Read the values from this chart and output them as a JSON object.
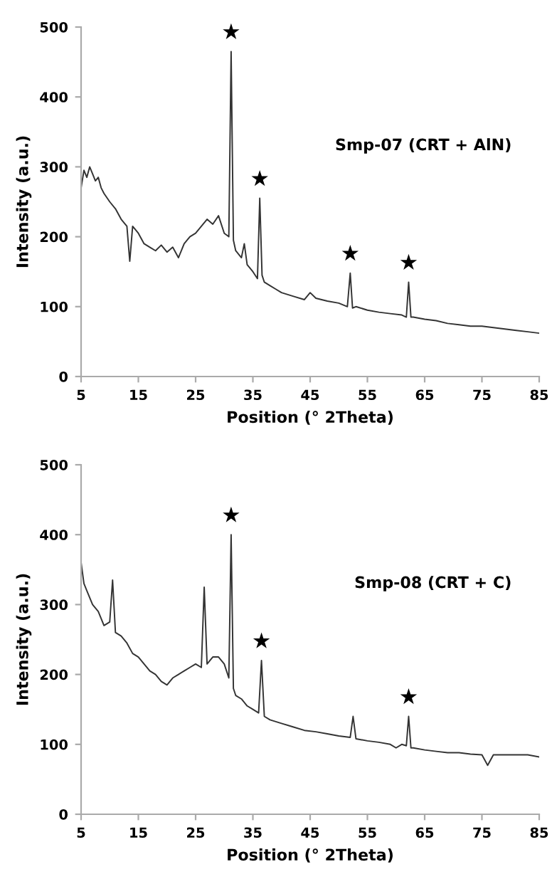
{
  "chart_data": [
    {
      "type": "line",
      "xlabel": "Position (° 2Theta)",
      "ylabel": "Intensity (a.u.)",
      "xlim": [
        5,
        85
      ],
      "ylim": [
        0,
        500
      ],
      "xticks": [
        5,
        15,
        25,
        35,
        45,
        55,
        65,
        75,
        85
      ],
      "yticks": [
        0,
        100,
        200,
        300,
        400,
        500
      ],
      "grid": false,
      "legend": false,
      "marker": "none",
      "line_style": "solid",
      "annotations": [
        "Smp-07 (CRT + AlN)",
        {
          "text": "★",
          "x": 31.2,
          "y": 465
        },
        {
          "text": "★",
          "x": 36.2,
          "y": 255
        },
        {
          "text": "★",
          "x": 52,
          "y": 148
        },
        {
          "text": "★",
          "x": 62.2,
          "y": 135
        }
      ],
      "series": [
        {
          "color": "#333333",
          "x": [
            5,
            5.5,
            6,
            6.5,
            7,
            7.5,
            8,
            8.5,
            9,
            10,
            11,
            12,
            13,
            13.5,
            14,
            15,
            16,
            17,
            18,
            19,
            20,
            21,
            22,
            23,
            24,
            25,
            26,
            27,
            28,
            29,
            30,
            30.8,
            31.2,
            31.6,
            32,
            33,
            33.5,
            34,
            35,
            35.8,
            36.2,
            36.6,
            37,
            38,
            39,
            40,
            42,
            44,
            45,
            46,
            48,
            50,
            51.5,
            52,
            52.4,
            53,
            55,
            57,
            59,
            61,
            61.8,
            62.2,
            62.6,
            63,
            65,
            67,
            69,
            71,
            73,
            75,
            77,
            79,
            81,
            83,
            85
          ],
          "values": [
            270,
            295,
            285,
            300,
            290,
            280,
            285,
            270,
            262,
            250,
            240,
            225,
            215,
            165,
            215,
            205,
            190,
            185,
            180,
            188,
            178,
            185,
            170,
            190,
            200,
            205,
            215,
            225,
            218,
            230,
            205,
            200,
            465,
            195,
            180,
            170,
            190,
            160,
            150,
            140,
            255,
            145,
            135,
            130,
            125,
            120,
            115,
            110,
            120,
            112,
            108,
            105,
            100,
            148,
            98,
            100,
            95,
            92,
            90,
            88,
            85,
            135,
            85,
            85,
            82,
            80,
            76,
            74,
            72,
            72,
            70,
            68,
            66,
            64,
            62
          ]
        }
      ]
    },
    {
      "type": "line",
      "xlabel": "Position (° 2Theta)",
      "ylabel": "Intensity (a.u.)",
      "xlim": [
        5,
        85
      ],
      "ylim": [
        0,
        500
      ],
      "xticks": [
        5,
        15,
        25,
        35,
        45,
        55,
        65,
        75,
        85
      ],
      "yticks": [
        0,
        100,
        200,
        300,
        400,
        500
      ],
      "grid": false,
      "legend": false,
      "marker": "none",
      "line_style": "solid",
      "annotations": [
        "Smp-08 (CRT + C)",
        {
          "text": "★",
          "x": 31.2,
          "y": 400
        },
        {
          "text": "★",
          "x": 36.5,
          "y": 220
        },
        {
          "text": "★",
          "x": 62.2,
          "y": 140
        }
      ],
      "series": [
        {
          "color": "#333333",
          "x": [
            5,
            5.5,
            6,
            7,
            8,
            9,
            10,
            10.5,
            11,
            12,
            13,
            14,
            15,
            16,
            17,
            18,
            19,
            20,
            21,
            22,
            23,
            24,
            25,
            26,
            26.5,
            27,
            28,
            29,
            30,
            30.8,
            31.2,
            31.6,
            32,
            33,
            34,
            35,
            36,
            36.5,
            37,
            38,
            40,
            42,
            44,
            46,
            48,
            50,
            52,
            52.5,
            53,
            55,
            57,
            59,
            60,
            61,
            61.8,
            62.2,
            62.6,
            63,
            65,
            67,
            69,
            71,
            73,
            75,
            76,
            77,
            79,
            81,
            83,
            85
          ],
          "values": [
            360,
            330,
            320,
            300,
            290,
            270,
            275,
            335,
            260,
            255,
            245,
            230,
            225,
            215,
            205,
            200,
            190,
            185,
            195,
            200,
            205,
            210,
            215,
            210,
            325,
            215,
            225,
            225,
            215,
            195,
            400,
            180,
            170,
            165,
            155,
            150,
            145,
            220,
            140,
            135,
            130,
            125,
            120,
            118,
            115,
            112,
            110,
            140,
            108,
            105,
            103,
            100,
            95,
            100,
            98,
            140,
            95,
            95,
            92,
            90,
            88,
            88,
            86,
            85,
            70,
            85,
            85,
            85,
            85,
            82
          ]
        }
      ]
    }
  ]
}
